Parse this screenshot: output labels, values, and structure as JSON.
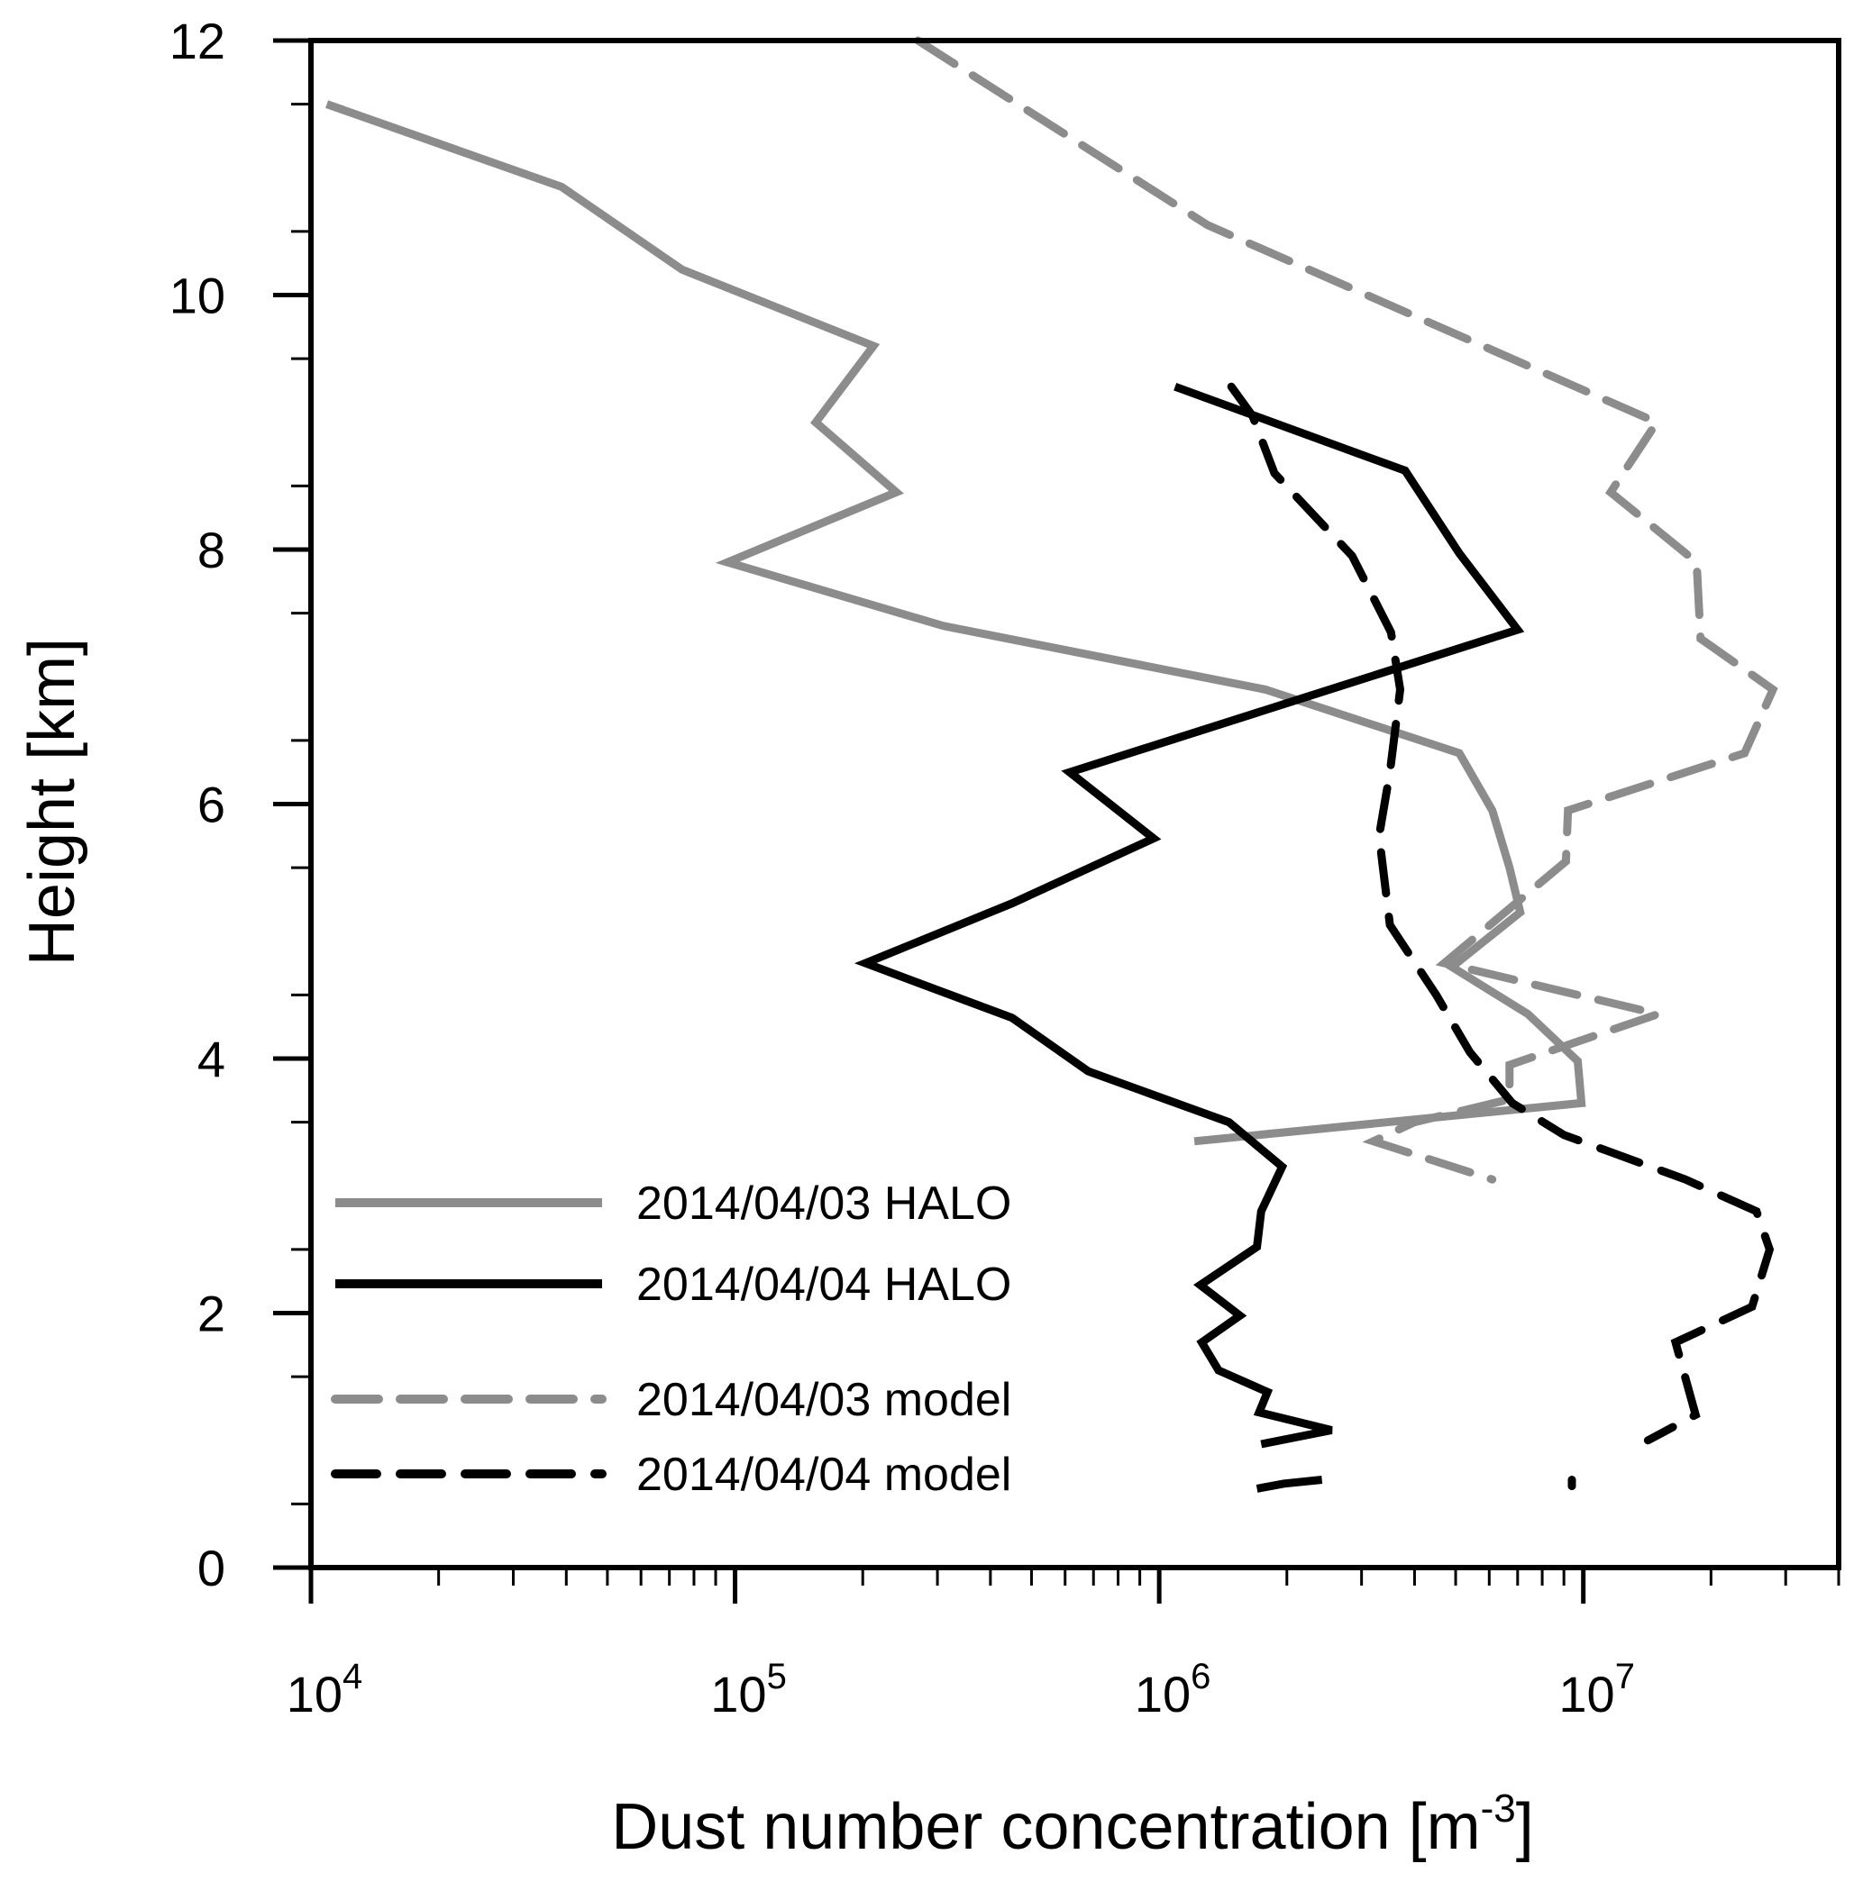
{
  "chart_data": {
    "type": "line",
    "title": "",
    "xlabel": "Dust number concentration [m",
    "xlabel_superscript": "-3",
    "xlabel_suffix": "]",
    "ylabel": "Height [km]",
    "xscale": "log",
    "xlim": [
      10000,
      40000000
    ],
    "ylim": [
      0,
      12
    ],
    "x_ticks": [
      {
        "base": "10",
        "exp": "4",
        "value": 10000
      },
      {
        "base": "10",
        "exp": "5",
        "value": 100000
      },
      {
        "base": "10",
        "exp": "6",
        "value": 1000000
      },
      {
        "base": "10",
        "exp": "7",
        "value": 10000000
      }
    ],
    "y_ticks": [
      "0",
      "2",
      "4",
      "6",
      "8",
      "10",
      "12"
    ],
    "grid": false,
    "legend_position": "bottom-left",
    "series": [
      {
        "name": "2014/04/03 HALO",
        "color": "#8c8c8c",
        "style": "solid",
        "segments": [
          [
            [
              10900,
              11.5
            ],
            [
              39000,
              10.85
            ],
            [
              75000,
              10.2
            ],
            [
              212000,
              9.6
            ],
            [
              155000,
              9.0
            ],
            [
              240000,
              8.45
            ],
            [
              96000,
              7.9
            ],
            [
              310000,
              7.4
            ],
            [
              1780000,
              6.9
            ],
            [
              5100000,
              6.4
            ],
            [
              6100000,
              5.95
            ],
            [
              6700000,
              5.5
            ],
            [
              7100000,
              5.15
            ],
            [
              4900000,
              4.72
            ],
            [
              7400000,
              4.35
            ],
            [
              9700000,
              3.98
            ],
            [
              9900000,
              3.65
            ],
            [
              1210000,
              3.35
            ]
          ]
        ]
      },
      {
        "name": "2014/04/04 HALO",
        "color": "#000000",
        "style": "solid",
        "segments": [
          [
            [
              1090000,
              9.28
            ],
            [
              3800000,
              8.62
            ],
            [
              5100000,
              7.97
            ],
            [
              7000000,
              7.37
            ],
            [
              615000,
              6.25
            ],
            [
              970000,
              5.73
            ],
            [
              450000,
              5.22
            ],
            [
              203000,
              4.75
            ],
            [
              450000,
              4.32
            ],
            [
              680000,
              3.9
            ],
            [
              1460000,
              3.5
            ],
            [
              1950000,
              3.15
            ],
            [
              1740000,
              2.8
            ],
            [
              1700000,
              2.52
            ],
            [
              1250000,
              2.22
            ],
            [
              1550000,
              1.98
            ],
            [
              1260000,
              1.77
            ],
            [
              1380000,
              1.55
            ],
            [
              1800000,
              1.38
            ],
            [
              1720000,
              1.22
            ],
            [
              2550000,
              1.08
            ],
            [
              1740000,
              0.97
            ]
          ],
          [
            [
              1700000,
              0.62
            ],
            [
              1970000,
              0.66
            ],
            [
              2420000,
              0.69
            ]
          ]
        ]
      },
      {
        "name": "2014/04/03 model",
        "color": "#8c8c8c",
        "style": "dashed",
        "segments": [
          [
            [
              270000,
              12.0
            ],
            [
              1300000,
              10.55
            ],
            [
              14900000,
              9.0
            ],
            [
              11600000,
              8.45
            ],
            [
              18500000,
              7.9
            ],
            [
              18900000,
              7.3
            ],
            [
              28000000,
              6.9
            ],
            [
              24000000,
              6.4
            ],
            [
              9200000,
              5.95
            ],
            [
              9100000,
              5.55
            ],
            [
              4700000,
              4.75
            ],
            [
              15000000,
              4.35
            ],
            [
              6700000,
              3.95
            ],
            [
              6700000,
              3.68
            ],
            [
              4000000,
              3.5
            ],
            [
              3200000,
              3.35
            ],
            [
              6100000,
              3.05
            ]
          ]
        ]
      },
      {
        "name": "2014/04/04 model",
        "color": "#000000",
        "style": "dashed",
        "segments": [
          [
            [
              1480000,
              9.28
            ],
            [
              1660000,
              9.05
            ],
            [
              1870000,
              8.6
            ],
            [
              2850000,
              7.95
            ],
            [
              3520000,
              7.35
            ],
            [
              3700000,
              6.9
            ],
            [
              3500000,
              6.25
            ],
            [
              3300000,
              5.75
            ],
            [
              3500000,
              5.05
            ],
            [
              4500000,
              4.5
            ],
            [
              5400000,
              4.05
            ],
            [
              6800000,
              3.65
            ],
            [
              9000000,
              3.4
            ],
            [
              17400000,
              3.05
            ],
            [
              25600000,
              2.8
            ],
            [
              27500000,
              2.5
            ],
            [
              25000000,
              2.05
            ],
            [
              16500000,
              1.77
            ],
            [
              18400000,
              1.2
            ],
            [
              14200000,
              1.0
            ]
          ],
          [
            [
              9400000,
              0.64
            ],
            [
              9400000,
              0.69
            ]
          ]
        ]
      }
    ]
  }
}
